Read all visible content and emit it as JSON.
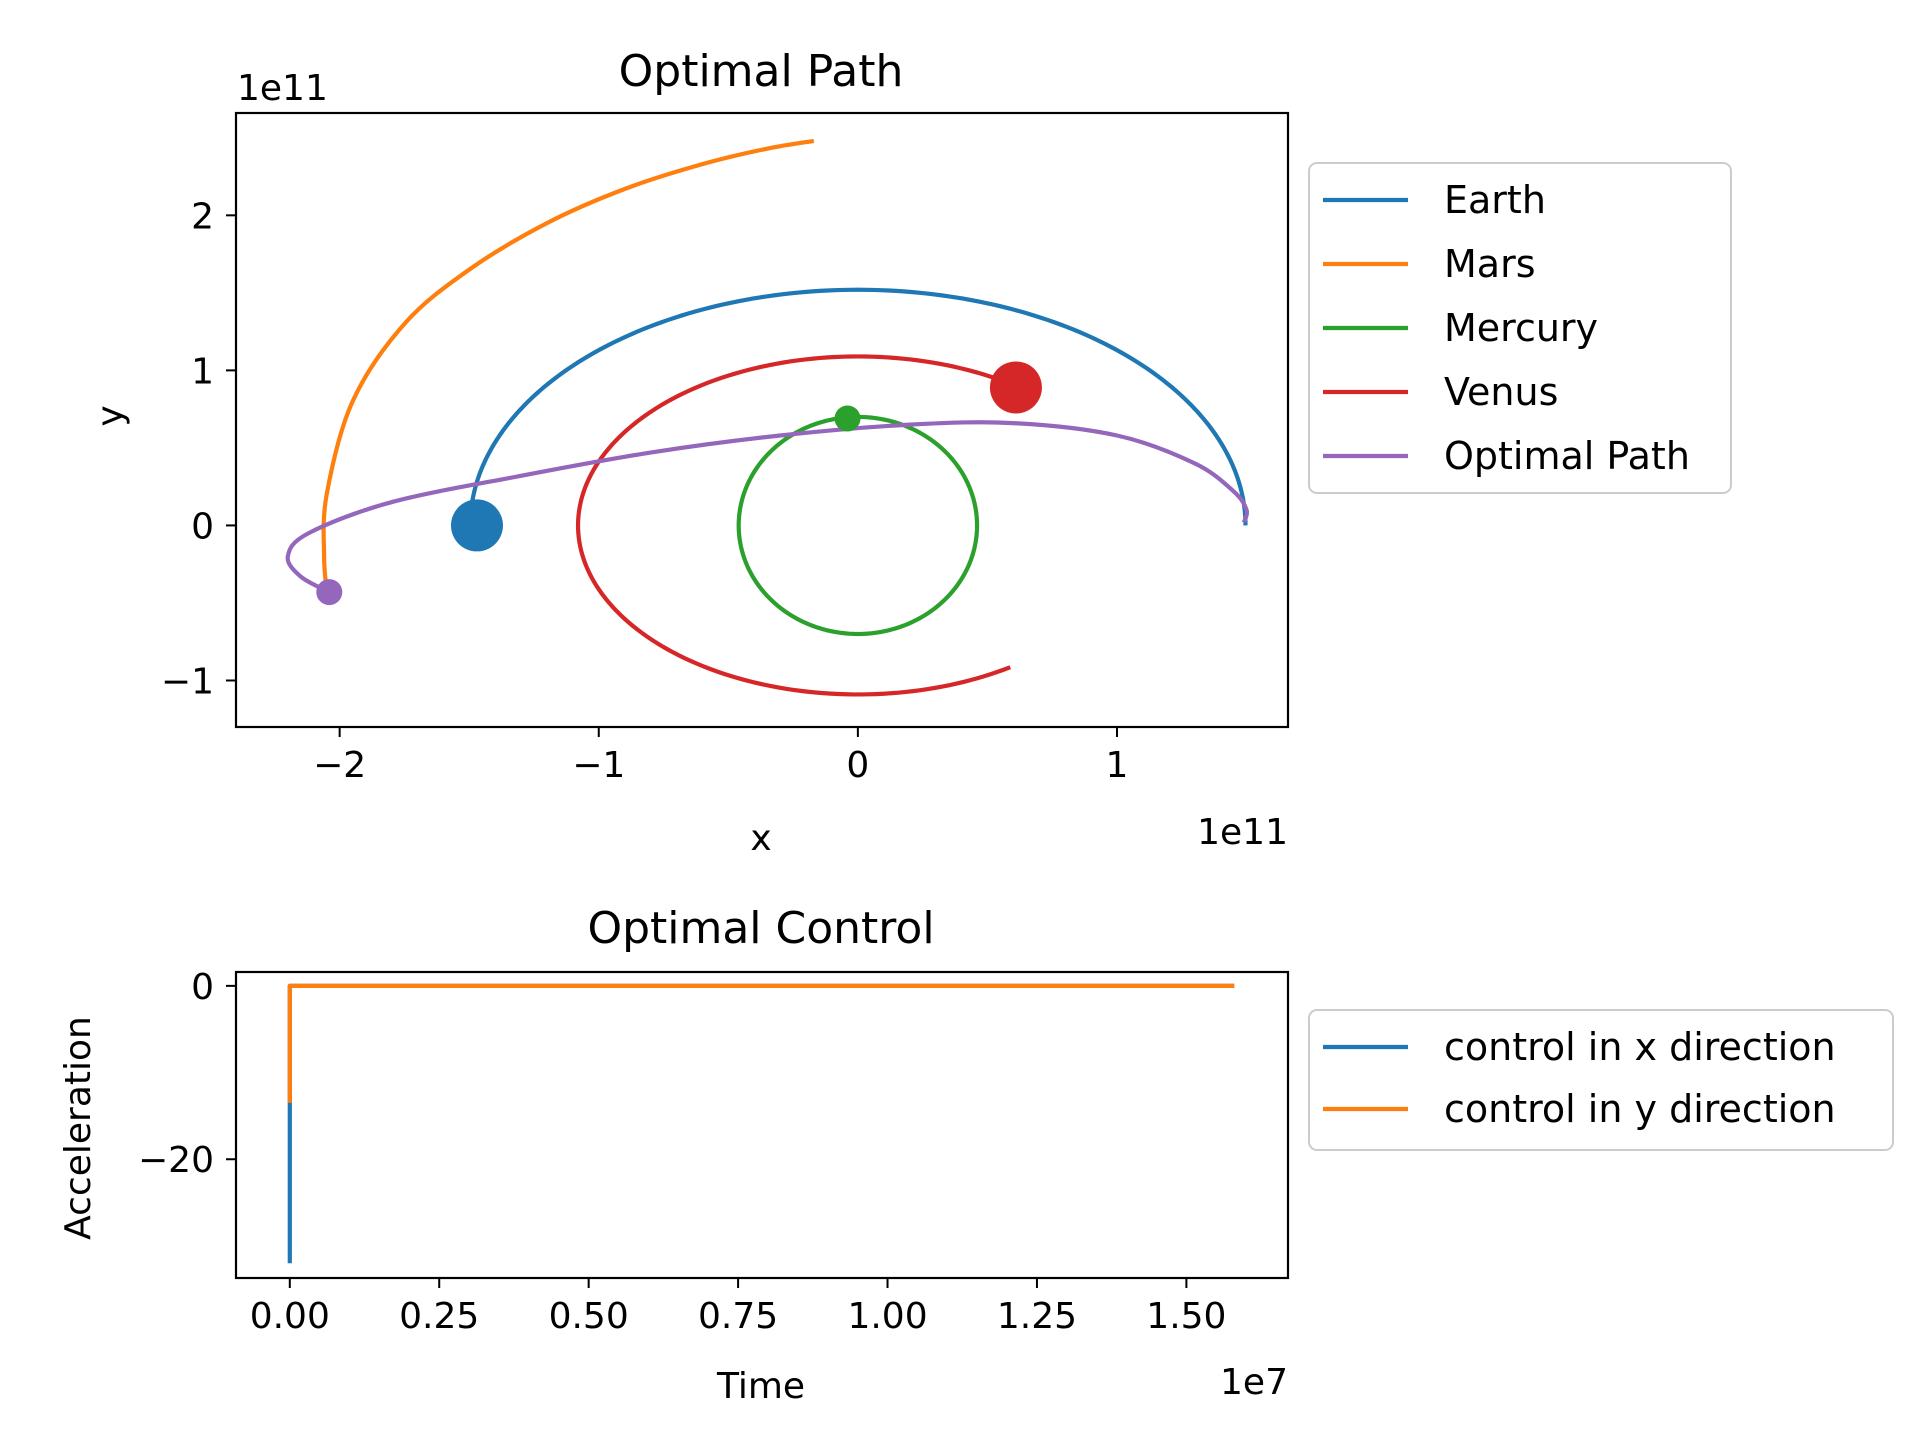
{
  "chart_data": [
    {
      "type": "line",
      "title": "Optimal Path",
      "xlabel": "x",
      "ylabel": "y",
      "x_offset_text": "1e11",
      "y_offset_text": "1e11",
      "xlim": [
        -2.4,
        1.66
      ],
      "ylim": [
        -1.3,
        2.66
      ],
      "x_ticks": [
        -2,
        -1,
        0,
        1
      ],
      "x_tick_labels": [
        "−2",
        "−1",
        "0",
        "1"
      ],
      "y_ticks": [
        -1,
        0,
        1,
        2
      ],
      "y_tick_labels": [
        "−1",
        "0",
        "1",
        "2"
      ],
      "legend_position": "outside right",
      "series": [
        {
          "name": "Earth",
          "color": "#1f77b4",
          "curve": "arc",
          "center": [
            0,
            0
          ],
          "a": 1.496,
          "b": 1.52,
          "theta_start_deg": 0,
          "theta_end_deg": 180,
          "marker_at": [
            -1.47,
            0
          ],
          "marker": "large"
        },
        {
          "name": "Mars",
          "color": "#ff7f0e",
          "points": [
            [
              -2.05,
              -0.42
            ],
            [
              -2.06,
              -0.2
            ],
            [
              -2.05,
              0.2
            ],
            [
              -1.95,
              0.8
            ],
            [
              -1.75,
              1.3
            ],
            [
              -1.5,
              1.65
            ],
            [
              -1.2,
              1.95
            ],
            [
              -0.9,
              2.17
            ],
            [
              -0.6,
              2.33
            ],
            [
              -0.35,
              2.43
            ],
            [
              -0.17,
              2.48
            ]
          ]
        },
        {
          "name": "Mercury",
          "color": "#2ca02c",
          "curve": "arc",
          "center": [
            0,
            0
          ],
          "a": 0.46,
          "b": 0.7,
          "theta_start_deg": 97,
          "theta_end_deg": 457,
          "marker_at": [
            -0.04,
            0.69
          ],
          "marker": "small"
        },
        {
          "name": "Venus",
          "color": "#d62728",
          "curve": "arc",
          "center": [
            0,
            0
          ],
          "a": 1.08,
          "b": 1.09,
          "theta_start_deg": 56,
          "theta_end_deg": 303,
          "marker_at": [
            0.61,
            0.89
          ],
          "marker": "large"
        },
        {
          "name": "Optimal Path",
          "color": "#9467bd",
          "points": [
            [
              -2.04,
              -0.43
            ],
            [
              -2.15,
              -0.33
            ],
            [
              -2.2,
              -0.2
            ],
            [
              -2.12,
              -0.05
            ],
            [
              -1.8,
              0.15
            ],
            [
              -1.3,
              0.32
            ],
            [
              -0.8,
              0.47
            ],
            [
              -0.3,
              0.58
            ],
            [
              0.2,
              0.65
            ],
            [
              0.6,
              0.66
            ],
            [
              1.0,
              0.58
            ],
            [
              1.3,
              0.4
            ],
            [
              1.45,
              0.22
            ],
            [
              1.5,
              0.1
            ],
            [
              1.49,
              0.02
            ]
          ],
          "marker_at": [
            -2.04,
            -0.43
          ],
          "marker": "small"
        }
      ]
    },
    {
      "type": "line",
      "title": "Optimal Control",
      "xlabel": "Time",
      "ylabel": "Acceleration",
      "x_offset_text": "1e7",
      "xlim": [
        -0.09,
        1.67
      ],
      "ylim": [
        -33.7,
        1.6
      ],
      "x_ticks": [
        0.0,
        0.25,
        0.5,
        0.75,
        1.0,
        1.25,
        1.5
      ],
      "x_tick_labels": [
        "0.00",
        "0.25",
        "0.50",
        "0.75",
        "1.00",
        "1.25",
        "1.50"
      ],
      "y_ticks": [
        0,
        -20
      ],
      "y_tick_labels": [
        "0",
        "−20"
      ],
      "legend_position": "outside right",
      "series": [
        {
          "name": "control in x direction",
          "color": "#1f77b4",
          "points": [
            [
              0.0,
              -32.0
            ],
            [
              0.0,
              0.0
            ],
            [
              1.58,
              0.0
            ]
          ]
        },
        {
          "name": "control in y direction",
          "color": "#ff7f0e",
          "points": [
            [
              0.0,
              -13.5
            ],
            [
              0.0,
              0.0
            ],
            [
              1.58,
              0.0
            ]
          ]
        }
      ]
    }
  ]
}
